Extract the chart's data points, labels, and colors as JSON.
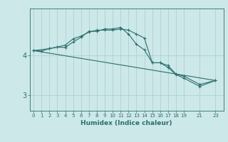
{
  "xlabel": "Humidex (Indice chaleur)",
  "bg_color": "#cce8e8",
  "grid_color": "#aacccc",
  "line_color": "#2d6e6e",
  "line1_x": [
    0,
    1,
    2,
    3,
    4,
    5,
    6,
    7,
    8,
    9,
    10,
    11,
    12,
    13,
    14,
    15,
    16,
    17,
    18,
    19,
    21,
    23
  ],
  "line1_y": [
    4.13,
    4.12,
    4.18,
    4.22,
    4.21,
    4.35,
    4.47,
    4.62,
    4.62,
    4.68,
    4.68,
    4.72,
    4.55,
    4.29,
    4.15,
    3.82,
    3.82,
    3.75,
    3.53,
    3.48,
    3.27,
    3.37
  ],
  "line2_x": [
    0,
    2,
    3,
    4,
    5,
    6,
    7,
    8,
    9,
    10,
    11,
    12,
    13,
    14,
    15,
    16,
    17,
    18,
    19,
    21,
    23
  ],
  "line2_y": [
    4.13,
    4.18,
    4.22,
    4.27,
    4.43,
    4.5,
    4.6,
    4.65,
    4.65,
    4.65,
    4.68,
    4.65,
    4.55,
    4.45,
    3.82,
    3.82,
    3.7,
    3.52,
    3.43,
    3.22,
    3.37
  ],
  "line3_x": [
    0,
    23
  ],
  "line3_y": [
    4.13,
    3.37
  ],
  "xticks": [
    0,
    1,
    2,
    3,
    4,
    5,
    6,
    7,
    8,
    9,
    10,
    11,
    12,
    13,
    14,
    15,
    16,
    17,
    18,
    19,
    21,
    23
  ],
  "yticks": [
    3.0,
    4.0
  ],
  "ylim": [
    2.6,
    5.2
  ],
  "xlim": [
    -0.5,
    24.0
  ]
}
